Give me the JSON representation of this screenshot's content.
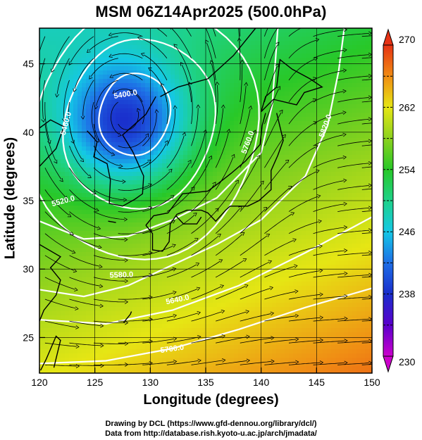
{
  "title": "MSM 06Z14Apr2025 (500.0hPa)",
  "xlabel": "Longitude (degrees)",
  "ylabel": "Latitude  (degrees)",
  "credits": {
    "line1": "Drawing by DCL (https://www.gfd-dennou.org/library/dcl/)",
    "line2": "Data from http://database.rish.kyoto-u.ac.jp/arch/jmadata/"
  },
  "colorbar": {
    "min": 230,
    "max": 270,
    "tick_labels": [
      "270",
      "262",
      "254",
      "246",
      "238",
      "230"
    ],
    "tick_values": [
      270,
      262,
      254,
      246,
      238,
      230
    ]
  },
  "chart_data": {
    "type": "heatmap",
    "variable": "temperature (K) with height contours and wind streamlines",
    "xlim": [
      120,
      150
    ],
    "ylim": [
      22.4,
      47.6
    ],
    "x_ticks": [
      "120",
      "125",
      "130",
      "135",
      "140",
      "145",
      "150"
    ],
    "x_tick_values": [
      120,
      125,
      130,
      135,
      140,
      145,
      150
    ],
    "y_ticks": [
      "25",
      "30",
      "35",
      "40",
      "45"
    ],
    "y_tick_values": [
      25,
      30,
      35,
      40,
      45
    ],
    "contour_labels": [
      "5400.0",
      "5460.0",
      "5520.0",
      "5580.0",
      "5640.0",
      "5700.0",
      "5760.0",
      "5820.0"
    ],
    "grid": true,
    "colormap_stops": [
      {
        "value": 230,
        "color": "#cc00cc"
      },
      {
        "value": 234,
        "color": "#5a00cc"
      },
      {
        "value": 238,
        "color": "#1a2ecc"
      },
      {
        "value": 242,
        "color": "#1e6ee6"
      },
      {
        "value": 246,
        "color": "#14c8e6"
      },
      {
        "value": 250,
        "color": "#1ed28a"
      },
      {
        "value": 254,
        "color": "#28c828"
      },
      {
        "value": 258,
        "color": "#8cd21e"
      },
      {
        "value": 262,
        "color": "#e6e614"
      },
      {
        "value": 266,
        "color": "#f08c14"
      },
      {
        "value": 270,
        "color": "#e63214"
      }
    ],
    "low_center": {
      "lon": 127.8,
      "lat": 40.5,
      "min_temp": 239
    }
  },
  "colors": {
    "contour": "#ffffff",
    "coast": "#000000",
    "streamline": "#000000"
  }
}
